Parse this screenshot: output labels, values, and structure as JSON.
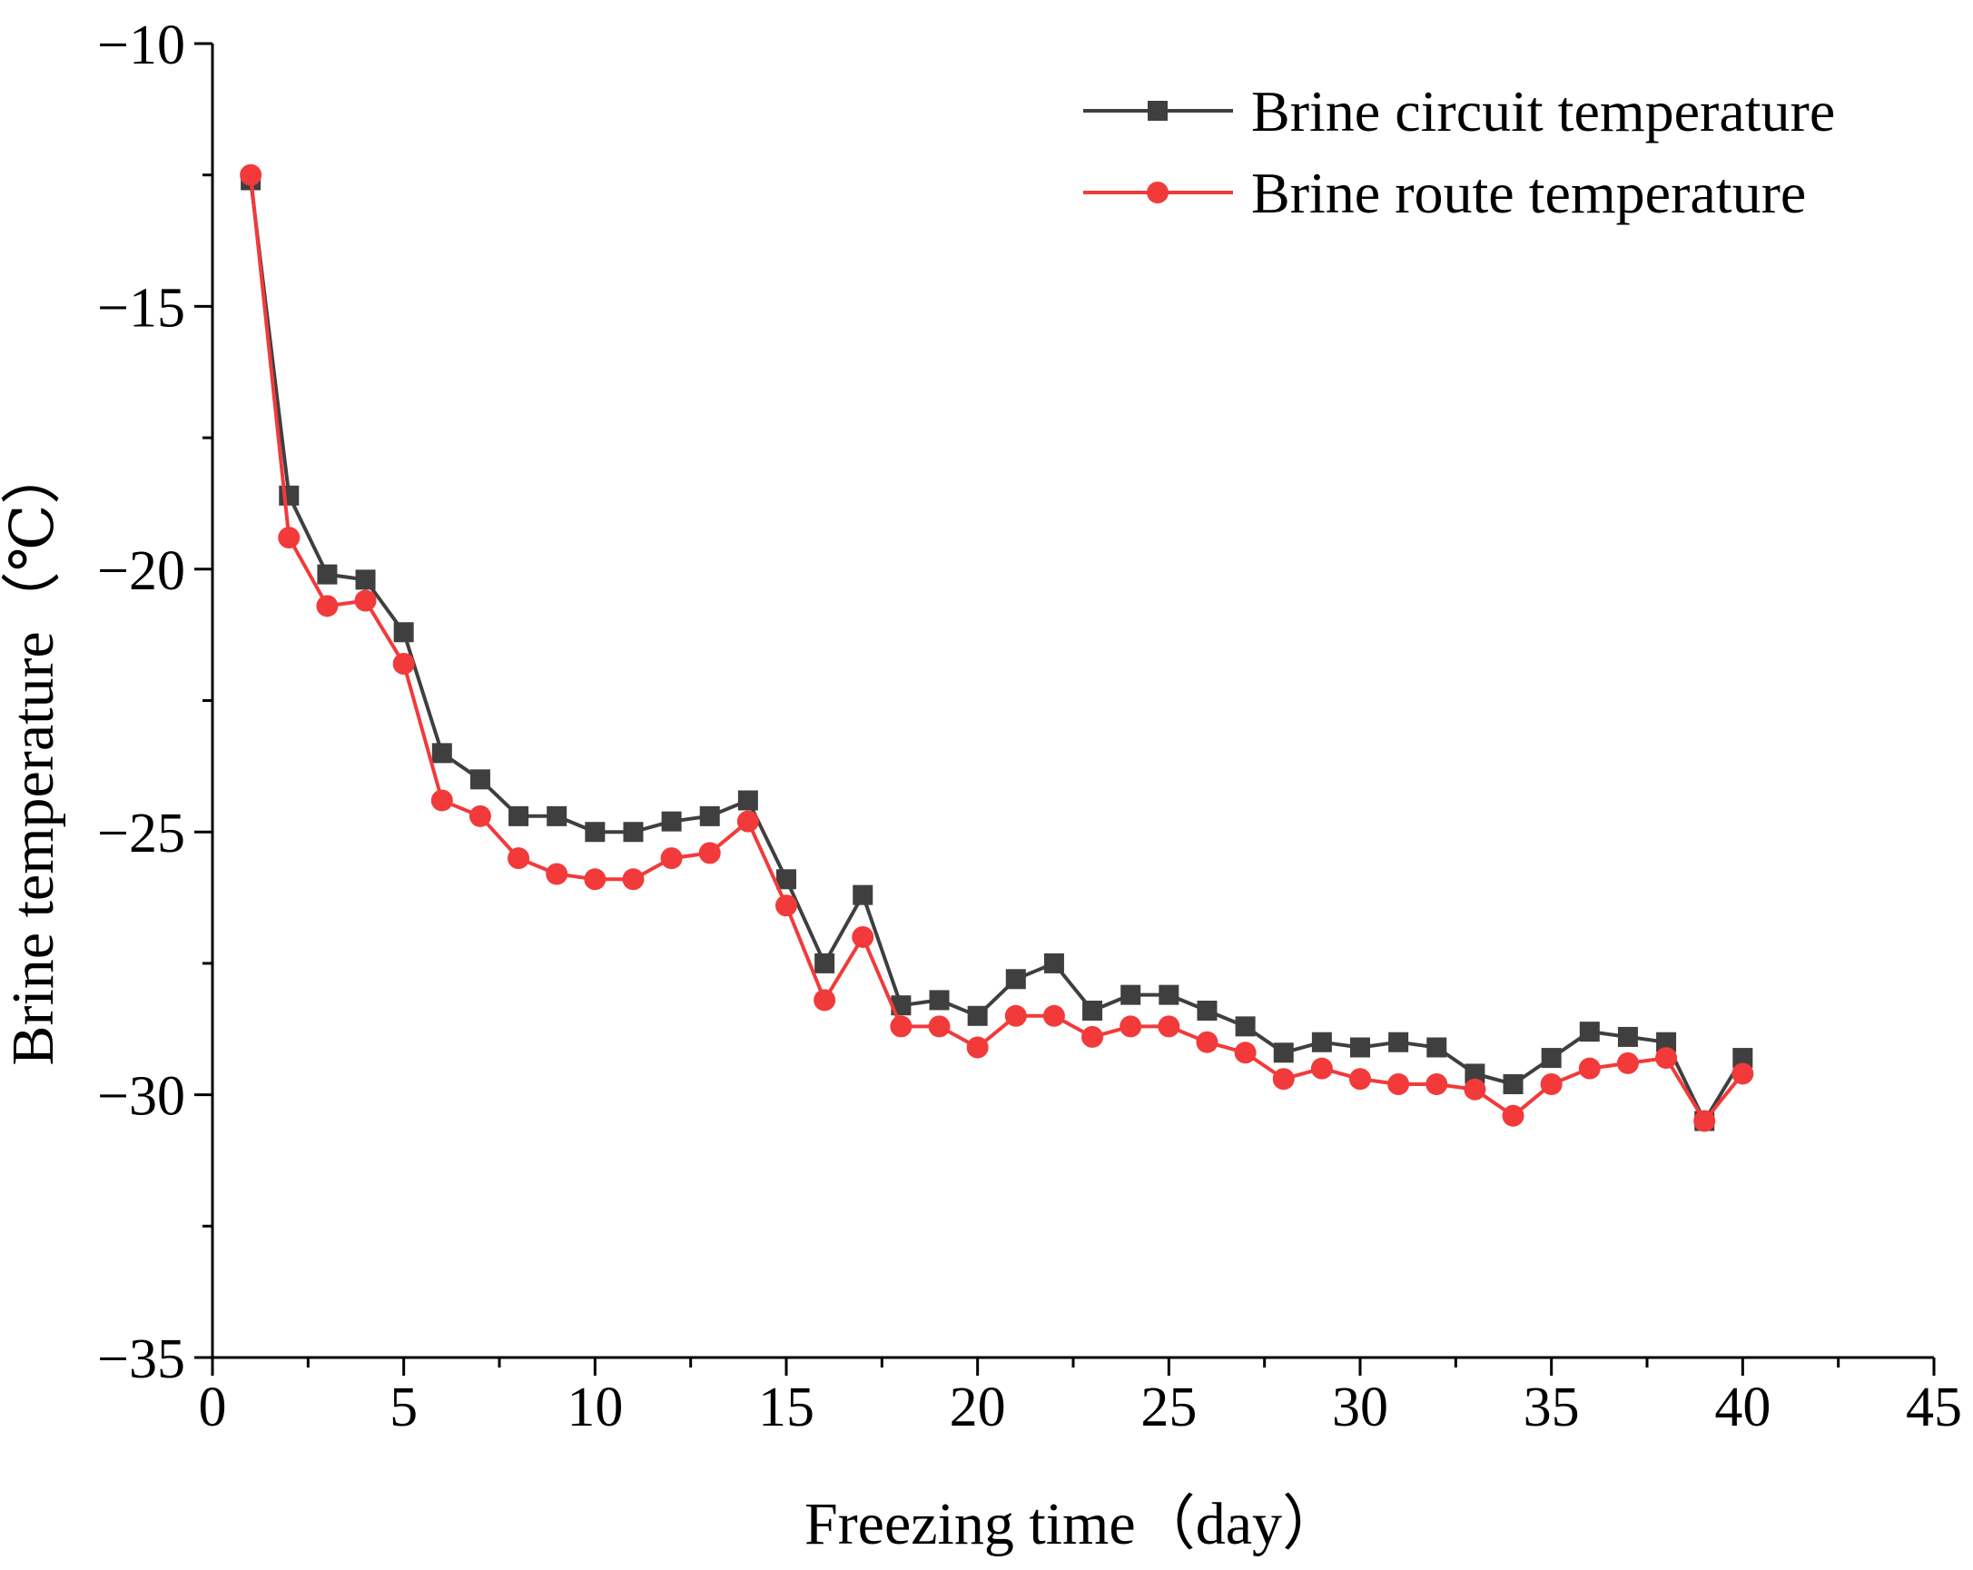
{
  "chart_data": {
    "type": "line",
    "title": "",
    "xlabel": "Freezing time（day）",
    "ylabel": "Brine temperature（℃）",
    "xlim": [
      0,
      45
    ],
    "ylim": [
      -35,
      -10
    ],
    "xticks": [
      0,
      5,
      10,
      15,
      20,
      25,
      30,
      35,
      40,
      45
    ],
    "yticks": [
      -10,
      -15,
      -20,
      -25,
      -30,
      -35
    ],
    "xtick_labels": [
      "0",
      "5",
      "10",
      "15",
      "20",
      "25",
      "30",
      "35",
      "40",
      "45"
    ],
    "ytick_labels": [
      "−10",
      "−15",
      "−20",
      "−25",
      "−30",
      "−35"
    ],
    "grid": false,
    "legend_position": "top-right",
    "x": [
      1,
      2,
      3,
      4,
      5,
      6,
      7,
      8,
      9,
      10,
      11,
      12,
      13,
      14,
      15,
      16,
      17,
      18,
      19,
      20,
      21,
      22,
      23,
      24,
      25,
      26,
      27,
      28,
      29,
      30,
      31,
      32,
      33,
      34,
      35,
      36,
      37,
      38,
      39,
      40
    ],
    "series": [
      {
        "name": "Brine circuit temperature",
        "color": "#3f3f3f",
        "marker": "square",
        "values": [
          -12.6,
          -18.6,
          -20.1,
          -20.2,
          -21.2,
          -23.5,
          -24.0,
          -24.7,
          -24.7,
          -25.0,
          -25.0,
          -24.8,
          -24.7,
          -24.4,
          -25.9,
          -27.5,
          -26.2,
          -28.3,
          -28.2,
          -28.5,
          -27.8,
          -27.5,
          -28.4,
          -28.1,
          -28.1,
          -28.4,
          -28.7,
          -29.2,
          -29.0,
          -29.1,
          -29.0,
          -29.1,
          -29.6,
          -29.8,
          -29.3,
          -28.8,
          -28.9,
          -29.0,
          -30.5,
          -29.3
        ]
      },
      {
        "name": "Brine route temperature",
        "color": "#f23a3a",
        "marker": "circle",
        "values": [
          -12.5,
          -19.4,
          -20.7,
          -20.6,
          -21.8,
          -24.4,
          -24.7,
          -25.5,
          -25.8,
          -25.9,
          -25.9,
          -25.5,
          -25.4,
          -24.8,
          -26.4,
          -28.2,
          -27.0,
          -28.7,
          -28.7,
          -29.1,
          -28.5,
          -28.5,
          -28.9,
          -28.7,
          -28.7,
          -29.0,
          -29.2,
          -29.7,
          -29.5,
          -29.7,
          -29.8,
          -29.8,
          -29.9,
          -30.4,
          -29.8,
          -29.5,
          -29.4,
          -29.3,
          -30.5,
          -29.6
        ]
      }
    ]
  }
}
